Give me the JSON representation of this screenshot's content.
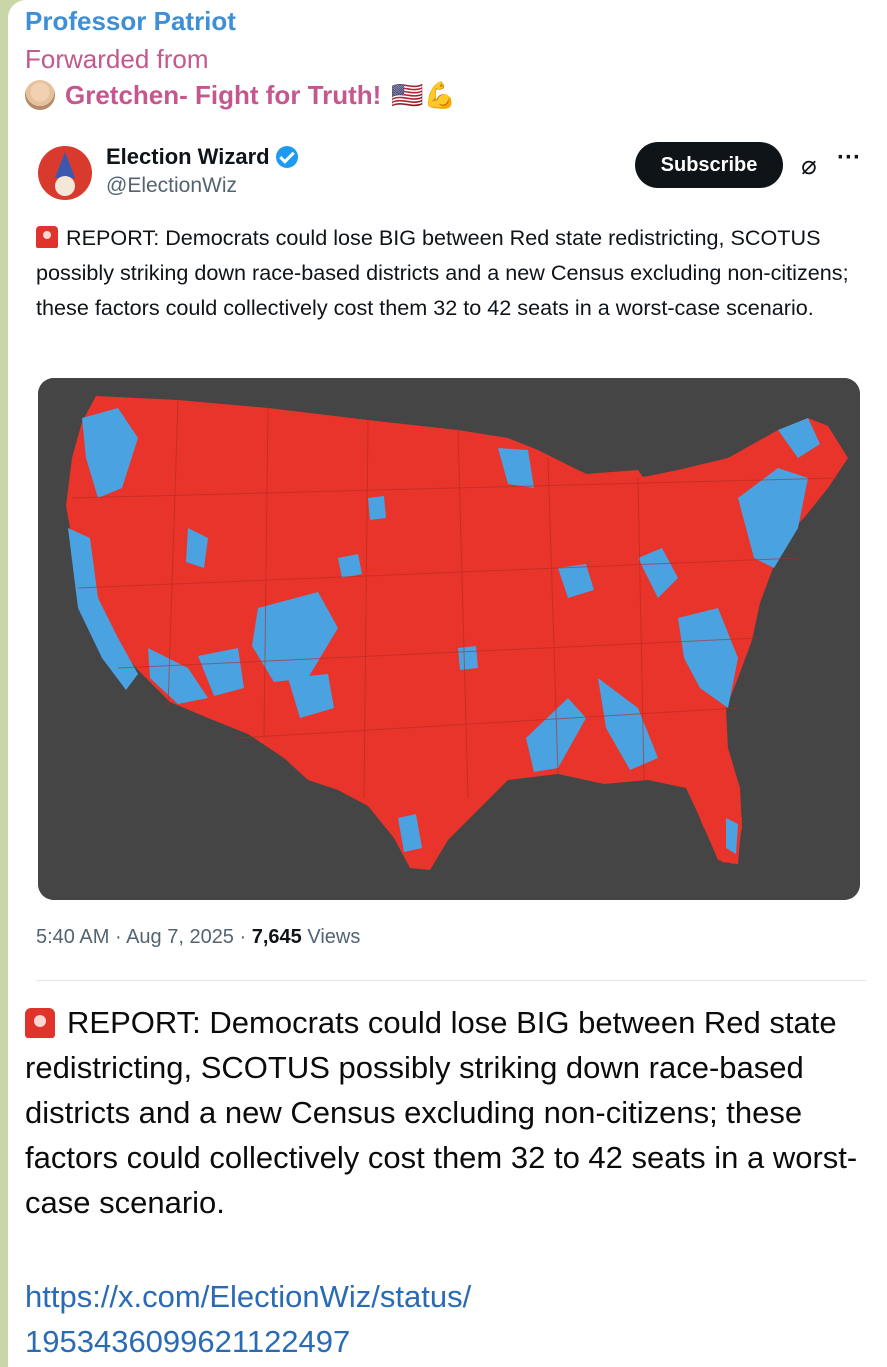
{
  "message": {
    "sender": "Professor Patriot",
    "forwarded_label": "Forwarded from",
    "origin_channel": "Gretchen- Fight for Truth!",
    "origin_emoji": "🇺🇸💪"
  },
  "tweet": {
    "author_name": "Election Wizard",
    "author_handle": "@ElectionWiz",
    "subscribe_label": "Subscribe",
    "grok_icon": "⌀",
    "more_icon": "···",
    "text": "REPORT: Democrats could lose BIG between Red state redistricting, SCOTUS possibly striking down race-based districts and a new Census excluding non-citizens; these factors could collectively cost them 32 to 42 seats in a worst-case scenario.",
    "time": "5:40 AM",
    "sep1": " · ",
    "date": "Aug 7, 2025",
    "sep2": " · ",
    "views_count": "7,645",
    "views_label": " Views",
    "map_colors": {
      "background": "#454545",
      "red": "#e8342a",
      "blue": "#4aa3e0"
    }
  },
  "body": {
    "text": "REPORT: Democrats could lose BIG between Red state redistricting, SCOTUS possibly striking down race-based districts and a new Census excluding non-citizens; these factors could collectively cost them 32 to 42 seats in a worst-case scenario.",
    "link_line1": "https://x.com/ElectionWiz/status/",
    "link_line2": "1953436099621122497"
  }
}
